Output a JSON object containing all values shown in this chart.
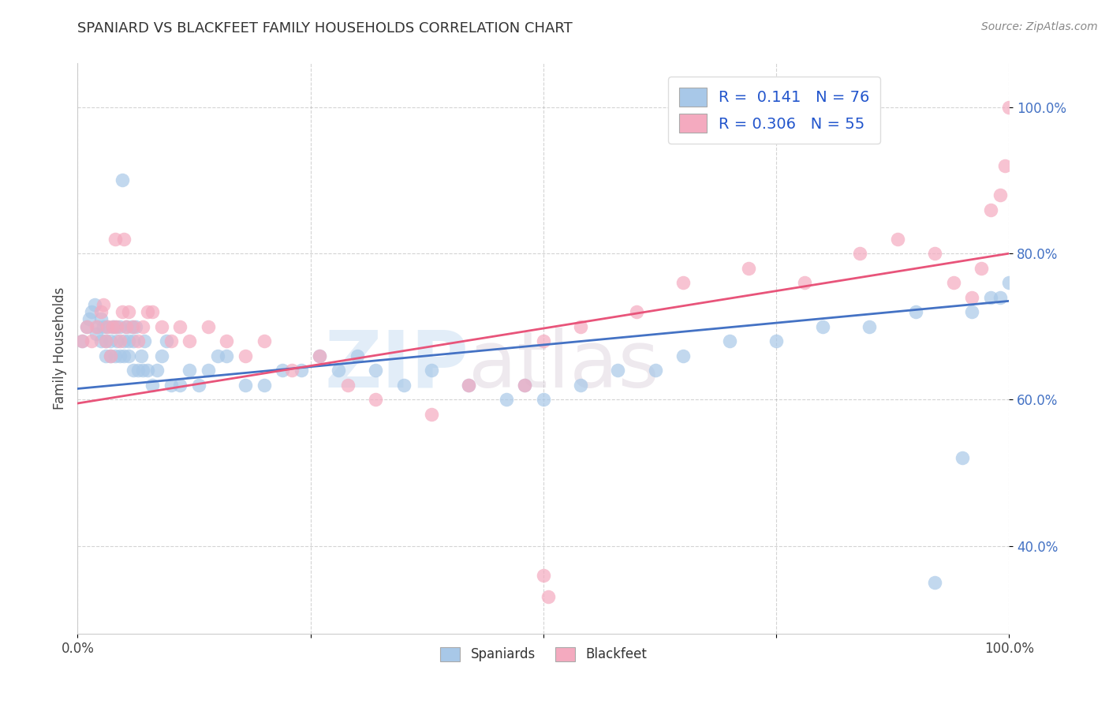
{
  "title": "SPANIARD VS BLACKFEET FAMILY HOUSEHOLDS CORRELATION CHART",
  "source": "Source: ZipAtlas.com",
  "ylabel": "Family Households",
  "xlim": [
    0.0,
    1.0
  ],
  "ylim": [
    0.28,
    1.06
  ],
  "y_ticks": [
    0.4,
    0.6,
    0.8,
    1.0
  ],
  "y_tick_labels": [
    "40.0%",
    "60.0%",
    "80.0%",
    "100.0%"
  ],
  "spaniard_color": "#a8c8e8",
  "blackfeet_color": "#f4aabf",
  "spaniard_line_color": "#4472c4",
  "blackfeet_line_color": "#e8547a",
  "R_spaniard": 0.141,
  "N_spaniard": 76,
  "R_blackfeet": 0.306,
  "N_blackfeet": 55,
  "legend_label_spaniard": "Spaniards",
  "legend_label_blackfeet": "Blackfeet",
  "watermark": "ZIPatlas",
  "spaniard_x": [
    0.005,
    0.01,
    0.012,
    0.015,
    0.018,
    0.02,
    0.022,
    0.025,
    0.025,
    0.028,
    0.03,
    0.03,
    0.032,
    0.035,
    0.035,
    0.038,
    0.04,
    0.04,
    0.042,
    0.045,
    0.045,
    0.048,
    0.05,
    0.05,
    0.052,
    0.055,
    0.055,
    0.058,
    0.06,
    0.06,
    0.062,
    0.065,
    0.068,
    0.07,
    0.072,
    0.075,
    0.08,
    0.085,
    0.09,
    0.095,
    0.1,
    0.11,
    0.12,
    0.13,
    0.14,
    0.15,
    0.16,
    0.18,
    0.2,
    0.22,
    0.24,
    0.26,
    0.28,
    0.3,
    0.32,
    0.35,
    0.38,
    0.42,
    0.46,
    0.48,
    0.5,
    0.54,
    0.58,
    0.62,
    0.65,
    0.7,
    0.75,
    0.8,
    0.85,
    0.9,
    0.92,
    0.95,
    0.96,
    0.98,
    0.99,
    1.0
  ],
  "spaniard_y": [
    0.68,
    0.7,
    0.71,
    0.72,
    0.73,
    0.69,
    0.7,
    0.68,
    0.71,
    0.7,
    0.66,
    0.68,
    0.7,
    0.66,
    0.68,
    0.7,
    0.66,
    0.7,
    0.68,
    0.66,
    0.7,
    0.9,
    0.66,
    0.68,
    0.7,
    0.66,
    0.68,
    0.7,
    0.64,
    0.68,
    0.7,
    0.64,
    0.66,
    0.64,
    0.68,
    0.64,
    0.62,
    0.64,
    0.66,
    0.68,
    0.62,
    0.62,
    0.64,
    0.62,
    0.64,
    0.66,
    0.66,
    0.62,
    0.62,
    0.64,
    0.64,
    0.66,
    0.64,
    0.66,
    0.64,
    0.62,
    0.64,
    0.62,
    0.6,
    0.62,
    0.6,
    0.62,
    0.64,
    0.64,
    0.66,
    0.68,
    0.68,
    0.7,
    0.7,
    0.72,
    0.35,
    0.52,
    0.72,
    0.74,
    0.74,
    0.76
  ],
  "blackfeet_x": [
    0.005,
    0.01,
    0.015,
    0.02,
    0.025,
    0.028,
    0.03,
    0.032,
    0.035,
    0.038,
    0.04,
    0.042,
    0.045,
    0.048,
    0.05,
    0.052,
    0.055,
    0.06,
    0.065,
    0.07,
    0.075,
    0.08,
    0.09,
    0.1,
    0.11,
    0.12,
    0.14,
    0.16,
    0.18,
    0.2,
    0.23,
    0.26,
    0.29,
    0.32,
    0.38,
    0.42,
    0.48,
    0.5,
    0.54,
    0.6,
    0.65,
    0.72,
    0.78,
    0.84,
    0.88,
    0.92,
    0.94,
    0.96,
    0.97,
    0.98,
    0.99,
    0.995,
    1.0,
    0.5,
    0.505
  ],
  "blackfeet_y": [
    0.68,
    0.7,
    0.68,
    0.7,
    0.72,
    0.73,
    0.68,
    0.7,
    0.66,
    0.7,
    0.82,
    0.7,
    0.68,
    0.72,
    0.82,
    0.7,
    0.72,
    0.7,
    0.68,
    0.7,
    0.72,
    0.72,
    0.7,
    0.68,
    0.7,
    0.68,
    0.7,
    0.68,
    0.66,
    0.68,
    0.64,
    0.66,
    0.62,
    0.6,
    0.58,
    0.62,
    0.62,
    0.68,
    0.7,
    0.72,
    0.76,
    0.78,
    0.76,
    0.8,
    0.82,
    0.8,
    0.76,
    0.74,
    0.78,
    0.86,
    0.88,
    0.92,
    1.0,
    0.36,
    0.33
  ]
}
